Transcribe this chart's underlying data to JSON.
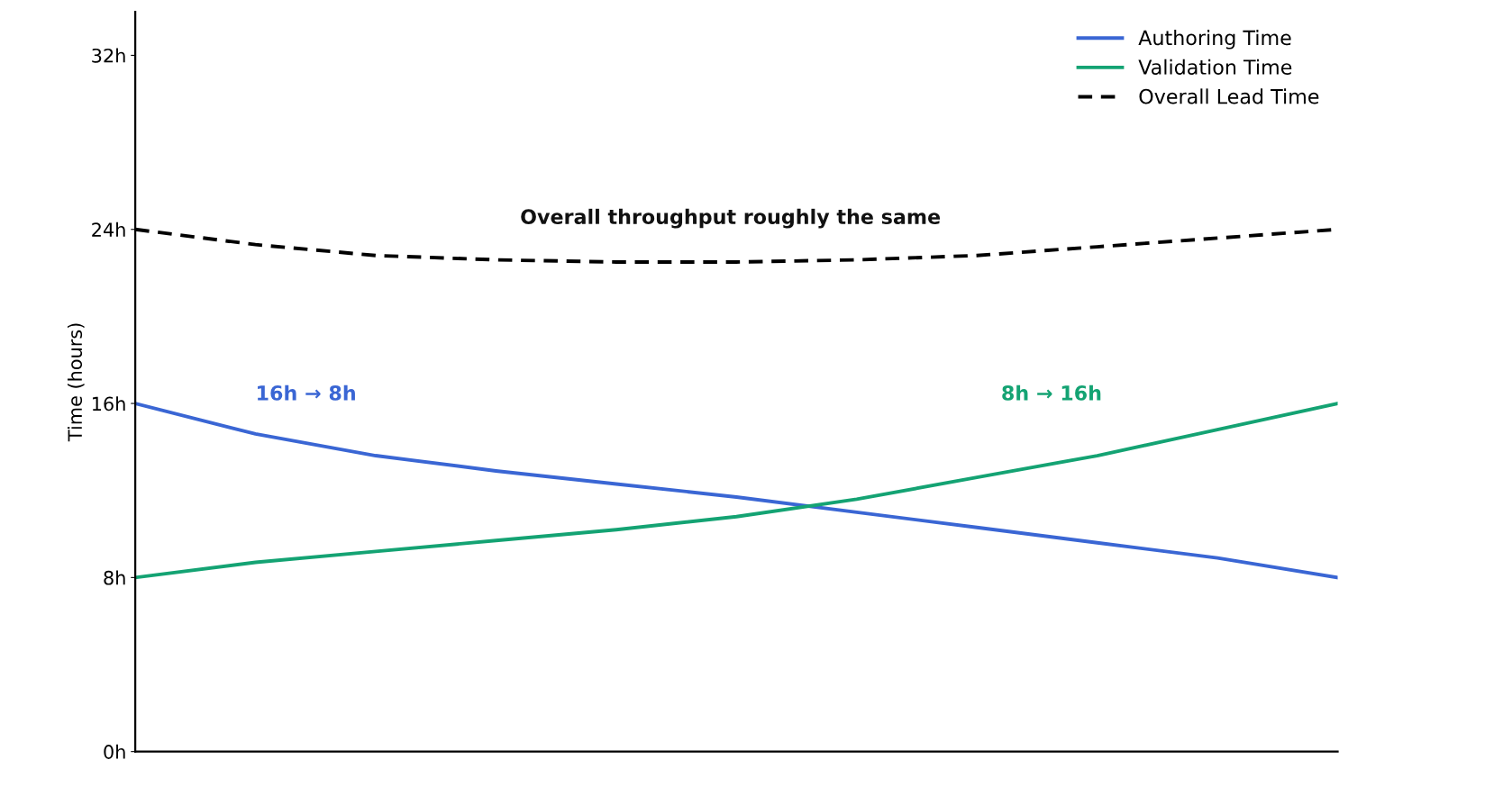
{
  "chart_data": {
    "type": "line",
    "ylabel": "Time (hours)",
    "categories": [
      null,
      null,
      null,
      null,
      null,
      null,
      null,
      null,
      null,
      null,
      null
    ],
    "series": [
      {
        "name": "Authoring Time",
        "color": "#3a66d4",
        "line_style": "solid",
        "values": [
          16,
          14.6,
          13.6,
          12.9,
          12.3,
          11.7,
          11.0,
          10.3,
          9.6,
          8.9,
          8.0
        ]
      },
      {
        "name": "Validation Time",
        "color": "#14a373",
        "line_style": "solid",
        "values": [
          8,
          8.7,
          9.2,
          9.7,
          10.2,
          10.8,
          11.6,
          12.6,
          13.6,
          14.8,
          16
        ]
      },
      {
        "name": "Overall Lead Time",
        "color": "#000000",
        "line_style": "dashed",
        "values": [
          24,
          23.3,
          22.8,
          22.6,
          22.5,
          22.5,
          22.6,
          22.8,
          23.2,
          23.6,
          24
        ]
      }
    ],
    "ylim": [
      0,
      34
    ],
    "yticks": [
      {
        "value": 0,
        "label": "0h"
      },
      {
        "value": 8,
        "label": "8h"
      },
      {
        "value": 16,
        "label": "16h"
      },
      {
        "value": 24,
        "label": "24h"
      },
      {
        "value": 32,
        "label": "32h"
      }
    ],
    "tick_labels": "y",
    "grid": false,
    "legend": "top right",
    "marker": "none",
    "annotations": [
      "16h → 8h",
      "8h → 16h",
      "Overall throughput roughly the same"
    ]
  }
}
